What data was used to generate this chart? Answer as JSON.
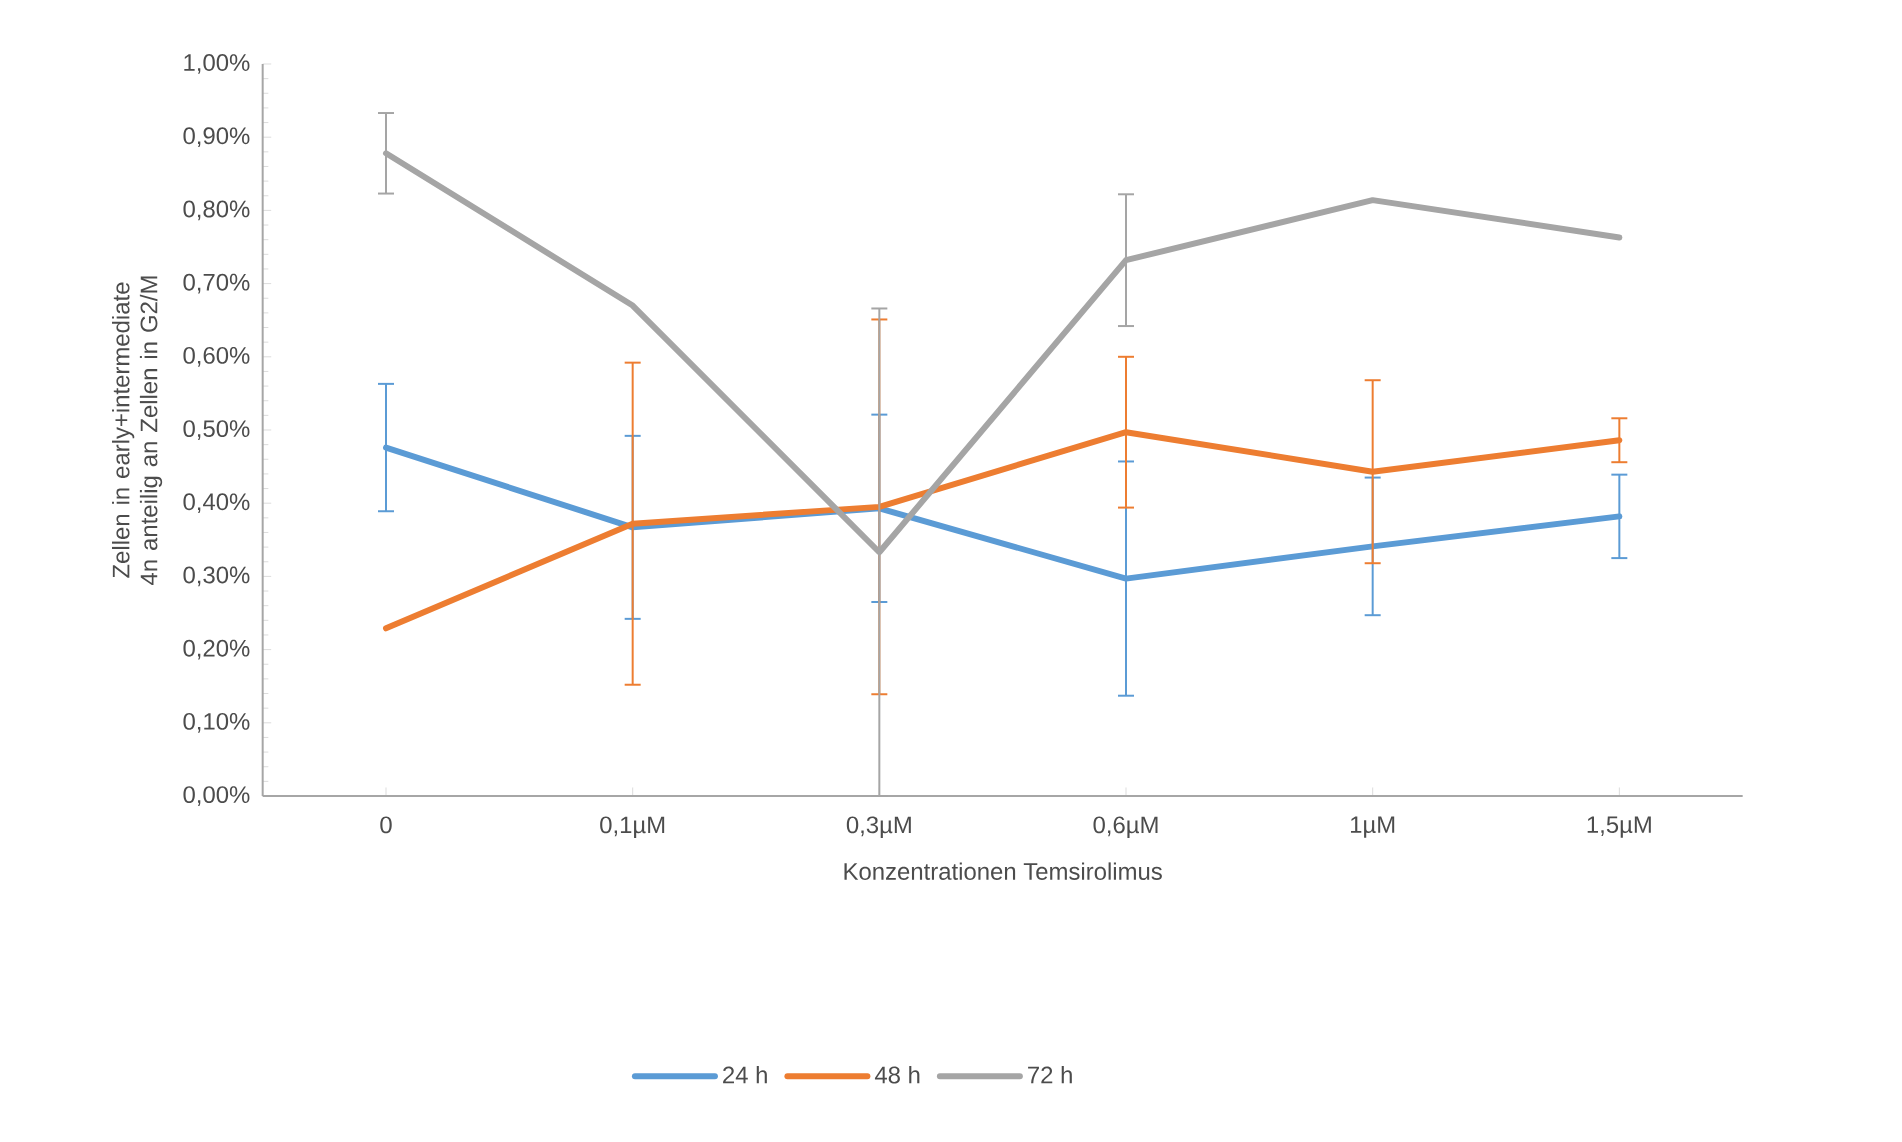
{
  "chart_data": {
    "type": "line",
    "xlabel": "Konzentrationen Temsirolimus",
    "ylabel": "Zellen in early+intermediate 4n anteilig an Zellen in G2/M",
    "categories": [
      "0",
      "0,1µM",
      "0,3µM",
      "0,6µM",
      "1µM",
      "1,5µM"
    ],
    "ylim": [
      0,
      1
    ],
    "yticks": [
      {
        "value": 0,
        "label": "0,00%"
      },
      {
        "value": 0.1,
        "label": "0,10%"
      },
      {
        "value": 0.2,
        "label": "0,20%"
      },
      {
        "value": 0.3,
        "label": "0,30%"
      },
      {
        "value": 0.4,
        "label": "0,40%"
      },
      {
        "value": 0.5,
        "label": "0,50%"
      },
      {
        "value": 0.6,
        "label": "0,60%"
      },
      {
        "value": 0.7,
        "label": "0,70%"
      },
      {
        "value": 0.8,
        "label": "0,80%"
      },
      {
        "value": 0.9,
        "label": "0,90%"
      },
      {
        "value": 1,
        "label": "1,00%"
      }
    ],
    "legend": "bottom",
    "series": [
      {
        "name": "24 h",
        "color": "#5b9bd5",
        "values": [
          0.476,
          0.367,
          0.393,
          0.297,
          0.341,
          0.382
        ],
        "errors": [
          0.087,
          0.125,
          0.128,
          0.16,
          0.094,
          0.057
        ]
      },
      {
        "name": "48 h",
        "color": "#ed7d31",
        "values": [
          0.229,
          0.372,
          0.395,
          0.497,
          0.443,
          0.486
        ],
        "errors": [
          null,
          0.22,
          0.256,
          0.103,
          0.125,
          0.03
        ]
      },
      {
        "name": "72 h",
        "color": "#a5a5a5",
        "values": [
          0.878,
          0.67,
          0.333,
          0.732,
          0.814,
          0.763
        ],
        "errors": [
          0.055,
          null,
          0.333,
          0.09,
          null,
          null
        ]
      }
    ]
  }
}
